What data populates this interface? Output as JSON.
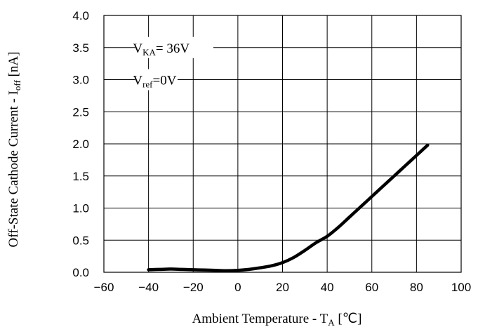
{
  "chart_data": {
    "type": "line",
    "title": "",
    "xlabel": {
      "main": "Ambient Temperature - T",
      "sub": "A",
      "unit": " [℃]"
    },
    "ylabel": {
      "main": "Off-State Cathode Current - I",
      "sub": "off",
      "unit": " [nA]"
    },
    "xlim": [
      -60,
      100
    ],
    "ylim": [
      0,
      4
    ],
    "x_ticks": [
      -60,
      -40,
      -20,
      0,
      20,
      40,
      60,
      80,
      100
    ],
    "x_tick_labels": [
      "−60",
      "−40",
      "−20",
      "0",
      "20",
      "40",
      "60",
      "80",
      "100"
    ],
    "y_ticks": [
      0,
      0.5,
      1,
      1.5,
      2,
      2.5,
      3,
      3.5,
      4
    ],
    "y_tick_labels": [
      "0.0",
      "0.5",
      "1.0",
      "1.5",
      "2.0",
      "2.5",
      "3.0",
      "3.5",
      "4.0"
    ],
    "grid": true,
    "series": [
      {
        "x": [
          -40,
          -35,
          -30,
          -25,
          -20,
          -15,
          -10,
          -5,
          0,
          5,
          10,
          15,
          20,
          25,
          30,
          35,
          40,
          45,
          50,
          55,
          60,
          65,
          70,
          75,
          80,
          85
        ],
        "y": [
          0.04,
          0.045,
          0.05,
          0.045,
          0.04,
          0.035,
          0.03,
          0.025,
          0.03,
          0.045,
          0.07,
          0.1,
          0.15,
          0.23,
          0.34,
          0.46,
          0.56,
          0.7,
          0.86,
          1.02,
          1.18,
          1.34,
          1.5,
          1.66,
          1.82,
          1.98
        ]
      }
    ],
    "annotations": [
      {
        "main": "V",
        "sub": "KA",
        "rest": "= 36V"
      },
      {
        "main": "V",
        "sub": "ref",
        "rest": "=0V"
      }
    ],
    "colors": {
      "line": "#000000",
      "grid": "#000000",
      "background": "#ffffff"
    }
  }
}
